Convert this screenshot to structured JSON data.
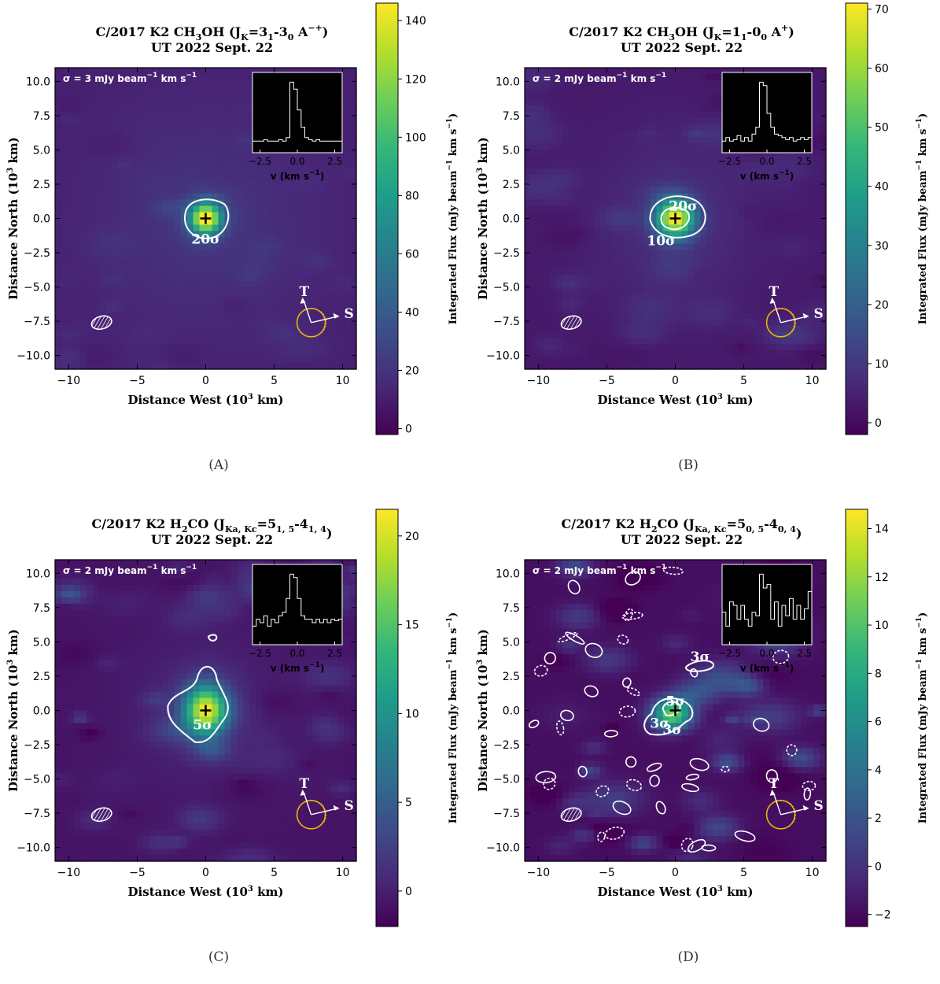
{
  "chart_data": [
    {
      "type": "heatmap",
      "panel_label": "(A)",
      "title_line1": "C/2017 K2 CH₃OH (J_K=3₁-3₀ A⁻⁺)",
      "title_main": "C/2017 K2 CH",
      "title_sub1": "3",
      "title_mid": "OH (J",
      "title_sub2": "K",
      "title_eq": "=3",
      "title_sub3": "1",
      "title_dash": "-3",
      "title_sub4": "0",
      "title_end": " A",
      "title_sup": "−+",
      "title_close": ")",
      "title_line2": "UT 2022 Sept. 22",
      "sigma_label": "σ = 3 mJy beam",
      "sigma_sup1": "−1",
      "sigma_unit": " km s",
      "sigma_sup2": "−1",
      "xlabel": "Distance West (10³ km)",
      "xlabel_a": "Distance West (10",
      "xlabel_sup": "3",
      "xlabel_b": " km)",
      "ylabel": "Distance North (10³ km)",
      "ylabel_a": "Distance North (10",
      "ylabel_sup": "3",
      "ylabel_b": " km)",
      "colorbar_label": "Integrated Flux (mJy beam⁻¹ km s⁻¹)",
      "cb_a": "Integrated Flux (mJy beam",
      "cb_sup1": "−1",
      "cb_b": " km s",
      "cb_sup2": "−1",
      "cb_c": ")",
      "xlim": [
        -11,
        11
      ],
      "ylim": [
        -11,
        11
      ],
      "xticks": [
        "−10",
        "−5",
        "0",
        "5",
        "10"
      ],
      "yticks": [
        "10.0",
        "7.5",
        "5.0",
        "2.5",
        "0.0",
        "−2.5",
        "−5.0",
        "−7.5",
        "−10.0"
      ],
      "colorbar_range": [
        -2,
        146
      ],
      "colorbar_ticks": [
        "0",
        "20",
        "40",
        "60",
        "80",
        "100",
        "120",
        "140"
      ],
      "contours": [
        "20σ"
      ],
      "inset_xlabel": "v (km s⁻¹)",
      "inset_xticks": [
        "−2.5",
        "0.0",
        "2.5"
      ],
      "inset_spectrum": [
        0.1,
        0.1,
        0.1,
        0.12,
        0.1,
        0.1,
        0.1,
        0.12,
        0.1,
        0.15,
        0.95,
        0.85,
        0.55,
        0.3,
        0.15,
        0.12,
        0.1,
        0.12,
        0.1,
        0.1,
        0.1,
        0.1,
        0.1,
        0.1
      ],
      "arrow_labels": [
        "T",
        "S"
      ],
      "noise_level": 0.15
    },
    {
      "type": "heatmap",
      "panel_label": "(B)",
      "title_main": "C/2017 K2 CH",
      "title_sub1": "3",
      "title_mid": "OH (J",
      "title_sub2": "K",
      "title_eq": "=1",
      "title_sub3": "1",
      "title_dash": "-0",
      "title_sub4": "0",
      "title_end": " A",
      "title_sup": "+",
      "title_close": ")",
      "title_line2": "UT 2022 Sept. 22",
      "sigma_label": "σ = 2 mJy beam",
      "sigma_sup1": "−1",
      "sigma_unit": " km s",
      "sigma_sup2": "−1",
      "xlabel_a": "Distance West (10",
      "xlabel_sup": "3",
      "xlabel_b": " km)",
      "ylabel_a": "Distance North (10",
      "ylabel_sup": "3",
      "ylabel_b": " km)",
      "cb_a": "Integrated Flux (mJy beam",
      "cb_sup1": "−1",
      "cb_b": " km s",
      "cb_sup2": "−1",
      "cb_c": ")",
      "xlim": [
        -11,
        11
      ],
      "ylim": [
        -11,
        11
      ],
      "xticks": [
        "−10",
        "−5",
        "0",
        "5",
        "10"
      ],
      "yticks": [
        "10.0",
        "7.5",
        "5.0",
        "2.5",
        "0.0",
        "−2.5",
        "−5.0",
        "−7.5",
        "−10.0"
      ],
      "colorbar_range": [
        -2,
        71
      ],
      "colorbar_ticks": [
        "0",
        "10",
        "20",
        "30",
        "40",
        "50",
        "60",
        "70"
      ],
      "contours": [
        "20σ",
        "10σ"
      ],
      "inset_spectrum": [
        0.1,
        0.15,
        0.1,
        0.12,
        0.18,
        0.1,
        0.15,
        0.1,
        0.2,
        0.3,
        0.95,
        0.9,
        0.5,
        0.3,
        0.2,
        0.18,
        0.15,
        0.12,
        0.15,
        0.1,
        0.12,
        0.15,
        0.12,
        0.15
      ],
      "inset_xticks": [
        "−2.5",
        "0.0",
        "2.5"
      ],
      "arrow_labels": [
        "T",
        "S"
      ],
      "noise_level": 0.25
    },
    {
      "type": "heatmap",
      "panel_label": "(C)",
      "title_main": "C/2017 K2 H",
      "title_sub1": "2",
      "title_mid": "CO (J",
      "title_sub2": "Ka, Kc",
      "title_eq": "=5",
      "title_sub3": "1, 5",
      "title_dash": "-4",
      "title_sub4": "1, 4",
      "title_end": "",
      "title_sup": "",
      "title_close": ")",
      "title_line2": "UT 2022 Sept. 22",
      "sigma_label": "σ = 2 mJy beam",
      "sigma_sup1": "−1",
      "sigma_unit": " km s",
      "sigma_sup2": "−1",
      "xlabel_a": "Distance West (10",
      "xlabel_sup": "3",
      "xlabel_b": " km)",
      "ylabel_a": "Distance North (10",
      "ylabel_sup": "3",
      "ylabel_b": " km)",
      "cb_a": "Integrated Flux (mJy beam",
      "cb_sup1": "−1",
      "cb_b": " km s",
      "cb_sup2": "−1",
      "cb_c": ")",
      "xlim": [
        -11,
        11
      ],
      "ylim": [
        -11,
        11
      ],
      "xticks": [
        "−10",
        "−5",
        "0",
        "5",
        "10"
      ],
      "yticks": [
        "10.0",
        "7.5",
        "5.0",
        "2.5",
        "0.0",
        "−2.5",
        "−5.0",
        "−7.5",
        "−10.0"
      ],
      "colorbar_range": [
        -2,
        21.5
      ],
      "colorbar_ticks": [
        "0",
        "5",
        "10",
        "15",
        "20"
      ],
      "contours": [
        "5σ"
      ],
      "inset_spectrum": [
        0.2,
        0.3,
        0.25,
        0.35,
        0.2,
        0.3,
        0.25,
        0.35,
        0.4,
        0.6,
        0.95,
        0.9,
        0.6,
        0.35,
        0.3,
        0.3,
        0.25,
        0.3,
        0.25,
        0.3,
        0.25,
        0.3,
        0.28,
        0.3
      ],
      "inset_xticks": [
        "−2.5",
        "0.0",
        "2.5"
      ],
      "arrow_labels": [
        "T",
        "S"
      ],
      "noise_level": 0.45
    },
    {
      "type": "heatmap",
      "panel_label": "(D)",
      "title_main": "C/2017 K2 H",
      "title_sub1": "2",
      "title_mid": "CO (J",
      "title_sub2": "Ka, Kc",
      "title_eq": "=5",
      "title_sub3": "0, 5",
      "title_dash": "-4",
      "title_sub4": "0, 4",
      "title_end": "",
      "title_sup": "",
      "title_close": ")",
      "title_line2": "UT 2022 Sept. 22",
      "sigma_label": "σ = 2 mJy beam",
      "sigma_sup1": "−1",
      "sigma_unit": " km s",
      "sigma_sup2": "−1",
      "xlabel_a": "Distance West (10",
      "xlabel_sup": "3",
      "xlabel_b": " km)",
      "ylabel_a": "Distance North (10",
      "ylabel_sup": "3",
      "ylabel_b": " km)",
      "cb_a": "Integrated Flux (mJy beam",
      "cb_sup1": "−1",
      "cb_b": " km s",
      "cb_sup2": "−1",
      "cb_c": ")",
      "xlim": [
        -11,
        11
      ],
      "ylim": [
        -11,
        11
      ],
      "xticks": [
        "−10",
        "−5",
        "0",
        "5",
        "10"
      ],
      "yticks": [
        "10.0",
        "7.5",
        "5.0",
        "2.5",
        "0.0",
        "−2.5",
        "−5.0",
        "−7.5",
        "−10.0"
      ],
      "colorbar_range": [
        -2.5,
        14.8
      ],
      "colorbar_ticks": [
        "−2",
        "0",
        "2",
        "4",
        "6",
        "8",
        "10",
        "12",
        "14"
      ],
      "contours": [
        "5σ",
        "3σ",
        "3σ",
        "3σ"
      ],
      "inset_spectrum": [
        0.4,
        0.2,
        0.55,
        0.5,
        0.3,
        0.5,
        0.3,
        0.2,
        0.4,
        0.35,
        0.95,
        0.75,
        0.8,
        0.3,
        0.55,
        0.2,
        0.5,
        0.35,
        0.6,
        0.3,
        0.5,
        0.3,
        0.45,
        0.7
      ],
      "inset_xticks": [
        "−2.5",
        "0.0",
        "2.5"
      ],
      "arrow_labels": [
        "T",
        "S"
      ],
      "noise_level": 0.75
    }
  ],
  "colors": {
    "viridis": [
      "#440154",
      "#482878",
      "#3e4989",
      "#31688e",
      "#26828e",
      "#1f9e89",
      "#35b779",
      "#6ece58",
      "#b5de2b",
      "#fde725"
    ],
    "contour": "#ffffff",
    "sun_circle": "#e6b800",
    "inset_bg": "#000000"
  }
}
